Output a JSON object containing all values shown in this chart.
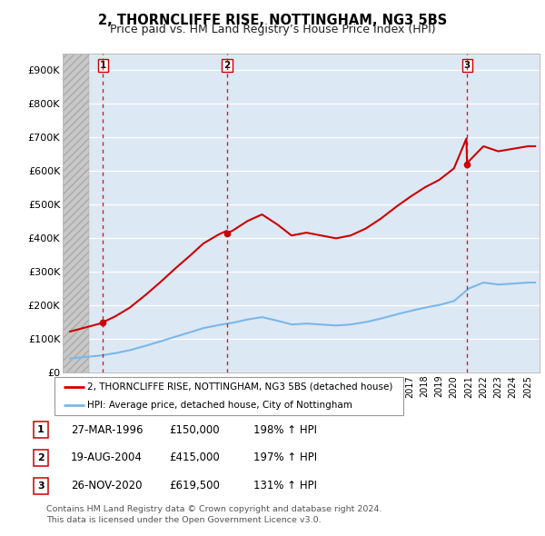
{
  "title": "2, THORNCLIFFE RISE, NOTTINGHAM, NG3 5BS",
  "subtitle": "Price paid vs. HM Land Registry’s House Price Index (HPI)",
  "xlim": [
    1993.5,
    2025.8
  ],
  "ylim": [
    0,
    950000
  ],
  "yticks": [
    0,
    100000,
    200000,
    300000,
    400000,
    500000,
    600000,
    700000,
    800000,
    900000
  ],
  "ytick_labels": [
    "£0",
    "£100K",
    "£200K",
    "£300K",
    "£400K",
    "£500K",
    "£600K",
    "£700K",
    "£800K",
    "£900K"
  ],
  "sale_dates": [
    1996.23,
    2004.63,
    2020.9
  ],
  "sale_prices": [
    150000,
    415000,
    619500
  ],
  "sale_labels": [
    "1",
    "2",
    "3"
  ],
  "hpi_color": "#7ab8e8",
  "price_color": "#cc0000",
  "dashed_color": "#cc0000",
  "background_plot": "#dde8f5",
  "hatch_end_year": 1995.3,
  "legend_entries": [
    "2, THORNCLIFFE RISE, NOTTINGHAM, NG3 5BS (detached house)",
    "HPI: Average price, detached house, City of Nottingham"
  ],
  "table_rows": [
    [
      "1",
      "27-MAR-1996",
      "£150,000",
      "198% ↑ HPI"
    ],
    [
      "2",
      "19-AUG-2004",
      "£415,000",
      "197% ↑ HPI"
    ],
    [
      "3",
      "26-NOV-2020",
      "£619,500",
      "131% ↑ HPI"
    ]
  ],
  "footnote": "Contains HM Land Registry data © Crown copyright and database right 2024.\nThis data is licensed under the Open Government Licence v3.0.",
  "title_fontsize": 10.5,
  "subtitle_fontsize": 9
}
